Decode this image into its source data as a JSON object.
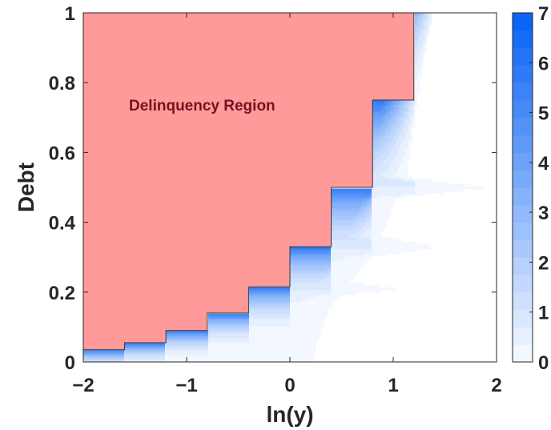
{
  "chart_data": {
    "type": "heatmap",
    "title": "",
    "xlabel": "ln(y)",
    "ylabel": "Debt",
    "xlim": [
      -2,
      2
    ],
    "ylim": [
      0,
      1
    ],
    "xticks": [
      -2,
      -1,
      0,
      1,
      2
    ],
    "xtick_labels": [
      "−2",
      "−1",
      "0",
      "1",
      "2"
    ],
    "yticks": [
      0,
      0.2,
      0.4,
      0.6,
      0.8,
      1
    ],
    "ytick_labels": [
      "0",
      "0.2",
      "0.4",
      "0.6",
      "0.8",
      "1"
    ],
    "colorbar": {
      "range": [
        0,
        7
      ],
      "ticks": [
        "0",
        "1",
        "2",
        "3",
        "4",
        "5",
        "6",
        "7"
      ],
      "levels": 20,
      "color_low": "#ffffff",
      "color_high": "#0a64f5"
    },
    "delinquency_region": {
      "label": "Delinquency Region",
      "label_color": "#7a1020",
      "fill_color": "#ff9a9a",
      "label_position": [
        -0.85,
        0.72
      ],
      "boundary_steps": [
        {
          "x": -2.0,
          "debt": 0.035
        },
        {
          "x": -1.6,
          "debt": 0.055
        },
        {
          "x": -1.2,
          "debt": 0.09
        },
        {
          "x": -0.8,
          "debt": 0.14
        },
        {
          "x": -0.4,
          "debt": 0.215
        },
        {
          "x": 0.0,
          "debt": 0.33
        },
        {
          "x": 0.4,
          "debt": 0.5
        },
        {
          "x": 0.8,
          "debt": 0.75
        },
        {
          "x": 1.2,
          "debt": 1.0
        }
      ]
    },
    "intensity_band": {
      "max_value": 7,
      "base_value": 6.2,
      "decay_width": 0.55,
      "region_right_edge": [
        {
          "debt": 0.0,
          "x": 0.25
        },
        {
          "debt": 0.06,
          "x": 0.28
        },
        {
          "debt": 0.1,
          "x": 0.34
        },
        {
          "debt": 0.15,
          "x": 0.4
        },
        {
          "debt": 0.19,
          "x": 0.5
        },
        {
          "debt": 0.21,
          "x": 1.05
        },
        {
          "debt": 0.23,
          "x": 0.6
        },
        {
          "debt": 0.3,
          "x": 0.8
        },
        {
          "debt": 0.33,
          "x": 1.45
        },
        {
          "debt": 0.36,
          "x": 0.9
        },
        {
          "debt": 0.47,
          "x": 1.05
        },
        {
          "debt": 0.5,
          "x": 1.9
        },
        {
          "debt": 0.53,
          "x": 1.15
        },
        {
          "debt": 0.75,
          "x": 1.25
        },
        {
          "debt": 1.0,
          "x": 1.4
        }
      ]
    }
  }
}
